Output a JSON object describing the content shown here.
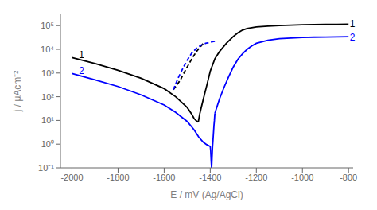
{
  "chart_data": {
    "type": "line",
    "log": "y",
    "grid": false,
    "xlabel": "E / mV (Ag/AgCl)",
    "ylabel": "j / μAcm⁻²",
    "xlim": [
      -2050,
      -780
    ],
    "xticks": [
      -2000,
      -1800,
      -1600,
      -1400,
      -1200,
      -1000,
      -800
    ],
    "ylim": [
      0.1,
      300000
    ],
    "yticks": [
      {
        "value": 0.1,
        "label": "10⁻¹"
      },
      {
        "value": 1,
        "label": "10⁰"
      },
      {
        "value": 10,
        "label": "10¹"
      },
      {
        "value": 100,
        "label": "10²"
      },
      {
        "value": 1000,
        "label": "10³"
      },
      {
        "value": 10000,
        "label": "10⁴"
      },
      {
        "value": 100000,
        "label": "10⁵"
      }
    ],
    "series": [
      {
        "color": "#000000",
        "line_style": "solid",
        "x": [
          -2000,
          -1900,
          -1800,
          -1700,
          -1600,
          -1550,
          -1500,
          -1480,
          -1470,
          -1460,
          -1452
        ],
        "values": [
          4500,
          2500,
          1300,
          600,
          220,
          100,
          35,
          18,
          12,
          9.5,
          8.5
        ]
      },
      {
        "color": "#000000",
        "line_style": "solid",
        "x": [
          -1452,
          -1445,
          -1430,
          -1415,
          -1400,
          -1380,
          -1360,
          -1330,
          -1300,
          -1280,
          -1260,
          -1240,
          -1220,
          -1200,
          -1150,
          -1100,
          -1050,
          -1000,
          -950,
          -900,
          -850,
          -800
        ],
        "values": [
          8.5,
          20,
          80,
          300,
          1200,
          4000,
          8000,
          18000,
          35000,
          50000,
          65000,
          75000,
          82000,
          88000,
          95000,
          100000,
          105000,
          108000,
          110000,
          112000,
          113000,
          115000
        ]
      },
      {
        "color": "#000000",
        "line_style": "dashed",
        "x": [
          -1560,
          -1530,
          -1510,
          -1480,
          -1460,
          -1445,
          -1430
        ],
        "values": [
          200,
          500,
          1200,
          4000,
          8000,
          12000,
          18000
        ]
      },
      {
        "color": "#0000ff",
        "line_style": "solid",
        "x": [
          -2000,
          -1900,
          -1800,
          -1700,
          -1600,
          -1550,
          -1500,
          -1470,
          -1450,
          -1430,
          -1415,
          -1405,
          -1400
        ],
        "values": [
          950,
          520,
          270,
          120,
          45,
          22,
          9,
          4,
          2,
          1.2,
          0.95,
          0.85,
          0.82
        ]
      },
      {
        "color": "#0000ff",
        "line_style": "solid",
        "x": [
          -1400,
          -1398,
          -1396,
          -1394,
          -1392,
          -1390,
          -1388,
          -1386,
          -1384,
          -1382,
          -1380
        ],
        "values": [
          0.82,
          0.5,
          0.2,
          0.1,
          0.3,
          0.8,
          1.5,
          3,
          6,
          10,
          20
        ]
      },
      {
        "color": "#0000ff",
        "line_style": "solid",
        "x": [
          -1380,
          -1360,
          -1340,
          -1320,
          -1300,
          -1280,
          -1260,
          -1240,
          -1220,
          -1200,
          -1150,
          -1100,
          -1050,
          -1000,
          -950,
          -900,
          -850,
          -800
        ],
        "values": [
          20,
          80,
          250,
          700,
          1800,
          3800,
          6500,
          10000,
          14000,
          18000,
          24000,
          28000,
          30000,
          31500,
          32500,
          33000,
          33500,
          34000
        ]
      },
      {
        "color": "#0000ff",
        "line_style": "dashed",
        "x": [
          -1560,
          -1540,
          -1520,
          -1500,
          -1480,
          -1460,
          -1440,
          -1420,
          -1400,
          -1390,
          -1380
        ],
        "values": [
          200,
          600,
          1500,
          3500,
          7000,
          11000,
          15000,
          18000,
          20000,
          21000,
          22000
        ]
      }
    ],
    "annotations": [
      {
        "text": "1",
        "x": -1970,
        "y": 5500,
        "color": "#000000"
      },
      {
        "text": "2",
        "x": -1970,
        "y": 1150,
        "color": "#0000ff"
      },
      {
        "text": "1",
        "x": -795,
        "y": 110000,
        "color": "#000000"
      },
      {
        "text": "2",
        "x": -795,
        "y": 30000,
        "color": "#0000ff"
      }
    ]
  }
}
